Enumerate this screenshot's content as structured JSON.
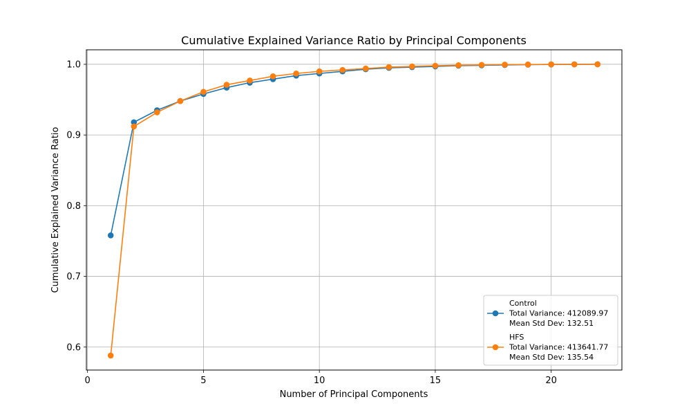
{
  "chart_data": {
    "type": "line",
    "title": "Cumulative Explained Variance Ratio by Principal Components",
    "xlabel": "Number of Principal Components",
    "ylabel": "Cumulative Explained Variance Ratio",
    "xlim": [
      -0.05,
      23.05
    ],
    "ylim": [
      0.5675,
      1.0205
    ],
    "xticks": [
      0,
      5,
      10,
      15,
      20
    ],
    "yticks": [
      0.6,
      0.7,
      0.8,
      0.9,
      1.0
    ],
    "ytick_labels": [
      "0.6",
      "0.7",
      "0.8",
      "0.9",
      "1.0"
    ],
    "grid": true,
    "legend_position": "lower-right",
    "x": [
      1,
      2,
      3,
      4,
      5,
      6,
      7,
      8,
      9,
      10,
      11,
      12,
      13,
      14,
      15,
      16,
      17,
      18,
      19,
      20,
      21,
      22
    ],
    "series": [
      {
        "name": "Control",
        "legend_lines": [
          "Control",
          "Total Variance: 412089.97",
          "Mean Std Dev: 132.51"
        ],
        "color": "#1f77b4",
        "values": [
          0.758,
          0.918,
          0.935,
          0.948,
          0.958,
          0.967,
          0.974,
          0.979,
          0.984,
          0.987,
          0.99,
          0.993,
          0.995,
          0.996,
          0.997,
          0.998,
          0.9985,
          0.999,
          0.9995,
          0.9998,
          0.9999,
          1.0
        ]
      },
      {
        "name": "HFS",
        "legend_lines": [
          "HFS",
          "Total Variance: 413641.77",
          "Mean Std Dev: 135.54"
        ],
        "color": "#ff7f0e",
        "values": [
          0.588,
          0.912,
          0.932,
          0.948,
          0.961,
          0.971,
          0.977,
          0.983,
          0.987,
          0.99,
          0.992,
          0.994,
          0.996,
          0.997,
          0.998,
          0.9987,
          0.9992,
          0.9995,
          0.9997,
          0.9999,
          0.99995,
          1.0
        ]
      }
    ]
  }
}
